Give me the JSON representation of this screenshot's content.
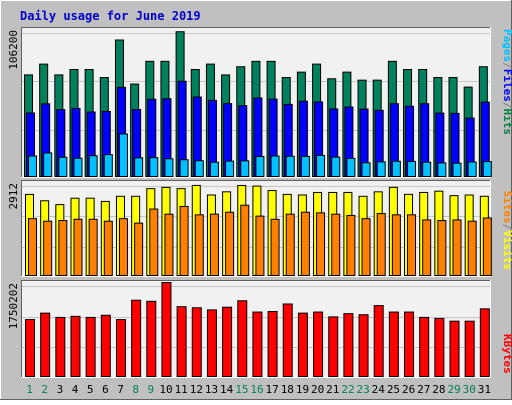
{
  "chart_data": {
    "type": "bar",
    "title": "Daily usage for June 2019",
    "categories": [
      "1",
      "2",
      "3",
      "4",
      "5",
      "6",
      "7",
      "8",
      "9",
      "10",
      "11",
      "12",
      "13",
      "14",
      "15",
      "16",
      "17",
      "18",
      "19",
      "20",
      "21",
      "22",
      "23",
      "24",
      "25",
      "26",
      "27",
      "28",
      "29",
      "30",
      "31"
    ],
    "weekend_days": [
      1,
      2,
      8,
      9,
      15,
      16,
      22,
      23,
      29,
      30
    ],
    "panels": [
      {
        "name": "hits-files-pages",
        "scale_label": "106200",
        "ylim": [
          0,
          106200
        ],
        "legend": [
          {
            "text": "Pages",
            "color": "#00c0ff"
          },
          {
            "text": "Files",
            "color": "#0000ff"
          },
          {
            "text": "Hits",
            "color": "#008040"
          }
        ],
        "separator_color": "#808080",
        "series": [
          {
            "name": "Hits",
            "color": "#00805c",
            "values": [
              73400,
              81200,
              73400,
              77300,
              77300,
              71500,
              98600,
              66800,
              83200,
              83200,
              104600,
              77300,
              81200,
              73400,
              79300,
              83200,
              83200,
              71500,
              75400,
              81200,
              70600,
              75400,
              69600,
              69600,
              83200,
              77300,
              77300,
              71500,
              71500,
              64600,
              79300
            ]
          },
          {
            "name": "Files",
            "color": "#0000ff",
            "values": [
              45900,
              52500,
              48300,
              49200,
              46600,
              47000,
              64400,
              48400,
              55800,
              56200,
              68800,
              57400,
              55000,
              52700,
              51200,
              56700,
              55900,
              52100,
              54400,
              53900,
              48800,
              50200,
              48700,
              47800,
              52600,
              50700,
              52600,
              45800,
              45600,
              42200,
              53700
            ]
          },
          {
            "name": "Pages",
            "color": "#00c0ff",
            "values": [
              14800,
              17000,
              13900,
              13200,
              15000,
              15800,
              30700,
              13500,
              13600,
              12800,
              12100,
              11400,
              10300,
              11100,
              11300,
              14400,
              14800,
              14600,
              14500,
              15200,
              14000,
              13100,
              9900,
              10600,
              11000,
              10900,
              10300,
              9800,
              9600,
              10500,
              10800
            ]
          }
        ]
      },
      {
        "name": "visits-sites",
        "scale_label": "2912",
        "ylim": [
          0,
          2912
        ],
        "legend": [
          {
            "text": "Sites",
            "color": "#ff8000"
          },
          {
            "text": "Visits",
            "color": "#ffff00"
          }
        ],
        "separator_color": "#808080",
        "series": [
          {
            "name": "Visits",
            "color": "#ffff00",
            "values": [
              2540,
              2340,
              2220,
              2420,
              2420,
              2320,
              2480,
              2480,
              2720,
              2760,
              2720,
              2820,
              2520,
              2620,
              2820,
              2800,
              2660,
              2540,
              2520,
              2600,
              2600,
              2600,
              2480,
              2620,
              2760,
              2540,
              2600,
              2640,
              2500,
              2520,
              2480
            ]
          },
          {
            "name": "Sites",
            "color": "#ff8000",
            "values": [
              1780,
              1700,
              1720,
              1760,
              1760,
              1700,
              1780,
              1640,
              2080,
              1920,
              2160,
              1900,
              1920,
              1980,
              2200,
              1860,
              1760,
              1920,
              1980,
              1960,
              1920,
              1880,
              1780,
              1940,
              1900,
              1900,
              1740,
              1720,
              1740,
              1700,
              1800
            ]
          }
        ]
      },
      {
        "name": "kbytes",
        "scale_label": "1750202",
        "ylim": [
          0,
          1750202
        ],
        "legend": [
          {
            "text": "KBytes",
            "color": "#ff0000"
          }
        ],
        "series": [
          {
            "name": "KBytes",
            "color": "#ff0000",
            "values": [
              1060000,
              1180000,
              1100000,
              1120000,
              1100000,
              1140000,
              1060000,
              1420000,
              1400000,
              1760000,
              1300000,
              1280000,
              1240000,
              1290000,
              1410000,
              1200000,
              1210000,
              1350000,
              1180000,
              1200000,
              1110000,
              1170000,
              1150000,
              1320000,
              1200000,
              1200000,
              1100000,
              1080000,
              1030000,
              1030000,
              1260000
            ]
          }
        ]
      }
    ]
  },
  "colors": {
    "background": "#c0c0c0",
    "panel_background": "#f1f1f1",
    "title": "#0000cc",
    "weekday_label": "#000000",
    "weekend_label": "#00805c"
  }
}
